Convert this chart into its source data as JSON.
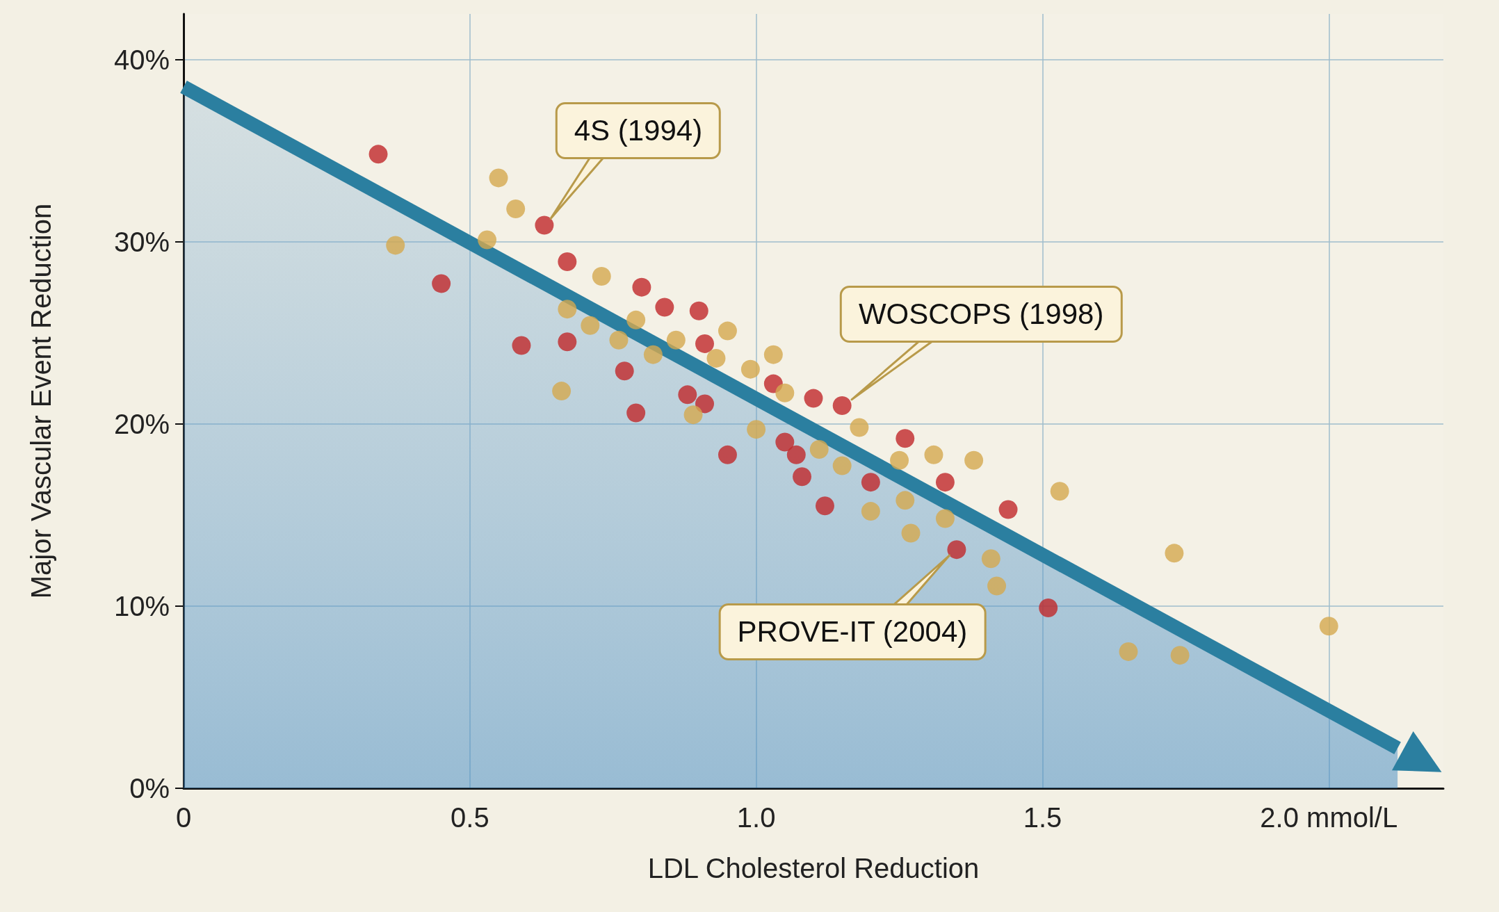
{
  "chart_data": {
    "type": "scatter",
    "xlabel": "LDL Cholesterol Reduction",
    "ylabel": "Major Vascular Event Reduction",
    "xlim": [
      0,
      2.2
    ],
    "xticks": [
      0,
      0.5,
      {
        "value": 1,
        "label": "1.0"
      },
      1.5,
      {
        "value": 2,
        "label": "2.0 mmol/L"
      }
    ],
    "ylim": [
      0,
      42.5
    ],
    "yticks": [
      {
        "value": 0,
        "label": "0%"
      },
      {
        "value": 10,
        "label": "10%"
      },
      {
        "value": 20,
        "label": "20%"
      },
      {
        "value": 30,
        "label": "30%"
      },
      {
        "value": 40,
        "label": "40%"
      }
    ],
    "grid": true,
    "marker": "circle",
    "series": [
      {
        "type": "area",
        "marker": "none",
        "color": "#2b7fa0",
        "x": [
          0,
          2.12
        ],
        "values": [
          38.5,
          2.2
        ]
      },
      {
        "color": "#c0282a",
        "x": [
          0.34,
          0.63,
          0.45,
          0.59,
          0.67,
          0.67,
          0.8,
          0.84,
          0.9,
          0.91,
          0.77,
          0.79,
          0.88,
          0.91,
          0.95,
          1.03,
          1.05,
          1.07,
          1.08,
          1.1,
          1.12,
          1.15,
          1.26,
          1.2,
          1.33,
          1.35,
          1.44,
          1.51
        ],
        "values": [
          34.8,
          30.9,
          27.7,
          24.3,
          28.9,
          24.5,
          27.5,
          26.4,
          26.2,
          24.4,
          22.9,
          20.6,
          21.6,
          21.1,
          18.3,
          22.2,
          19.0,
          18.3,
          17.1,
          21.4,
          15.5,
          21.0,
          19.2,
          16.8,
          16.8,
          13.1,
          15.3,
          9.9
        ]
      },
      {
        "color": "#d4a94f",
        "x": [
          0.37,
          0.55,
          0.58,
          0.53,
          0.67,
          0.71,
          0.73,
          0.79,
          0.76,
          0.82,
          0.86,
          0.66,
          0.89,
          0.93,
          0.95,
          0.99,
          1.03,
          1.0,
          1.05,
          1.11,
          1.15,
          1.18,
          1.2,
          1.25,
          1.26,
          1.27,
          1.31,
          1.33,
          1.38,
          1.41,
          1.42,
          1.53,
          1.65,
          1.73,
          1.74,
          2.0
        ],
        "values": [
          29.8,
          33.5,
          31.8,
          30.1,
          26.3,
          25.4,
          28.1,
          25.7,
          24.6,
          23.8,
          24.6,
          21.8,
          20.5,
          23.6,
          25.1,
          23.0,
          23.8,
          19.7,
          21.7,
          18.6,
          17.7,
          19.8,
          15.2,
          18.0,
          15.8,
          14.0,
          18.3,
          14.8,
          18.0,
          12.6,
          11.1,
          16.3,
          7.5,
          12.9,
          7.3,
          8.9
        ]
      }
    ],
    "annotations": [
      {
        "text": "4S (1994)",
        "x": 0.63,
        "y": 30.9
      },
      {
        "text": "WOSCOPS (1998)",
        "x": 1.15,
        "y": 21.0
      },
      {
        "text": "PROVE-IT (2004)",
        "x": 1.35,
        "y": 13.1
      }
    ]
  }
}
